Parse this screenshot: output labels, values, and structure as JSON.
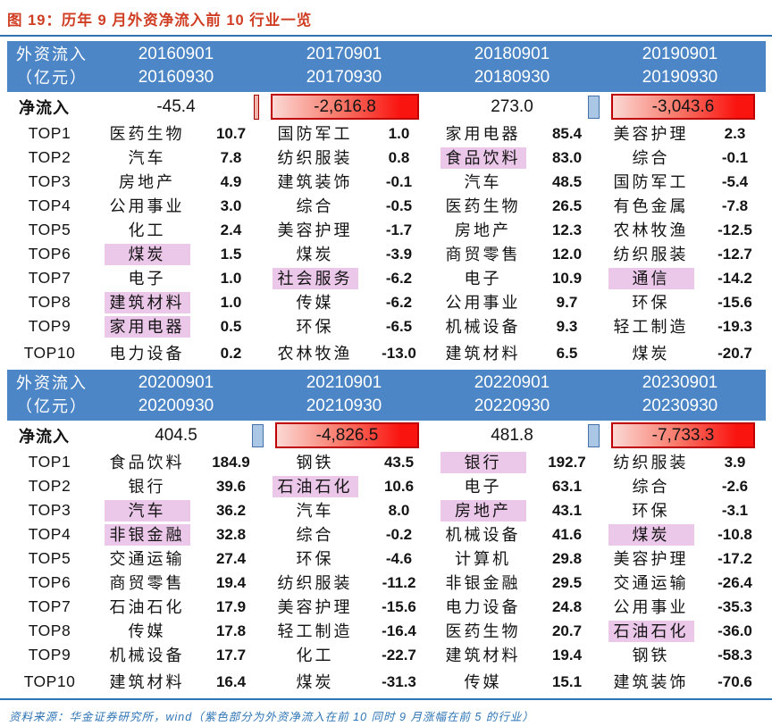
{
  "title": "图 19：历年 9 月外资净流入前 10 行业一览",
  "footer": "资料来源：华金证券研究所，wind（紫色部分为外资净流入在前 10 同时 9 月涨幅在前 5 的行业）",
  "header": {
    "col_label_line1": "外资流入",
    "col_label_line2": "（亿元）",
    "netflow_label": "净流入"
  },
  "colors": {
    "title_red": "#CF3E23",
    "line_blue": "#2E74B5",
    "header_blue": "#4C86C6",
    "highlight_purple": "#EBC7E9",
    "databar_red": "#FA1410",
    "databar_red_border": "#BE0000",
    "databar_blue": "#AAC7E6"
  },
  "tables": [
    {
      "periods": [
        {
          "start": "20160901",
          "end": "20160930"
        },
        {
          "start": "20170901",
          "end": "20170930"
        },
        {
          "start": "20180901",
          "end": "20180930"
        },
        {
          "start": "20190901",
          "end": "20190930"
        }
      ],
      "netflow": [
        {
          "value": "-45.4",
          "box": false,
          "sliver": null
        },
        {
          "value": "-2,616.8",
          "box": true,
          "sliver": "red"
        },
        {
          "value": "273.0",
          "box": false,
          "sliver": null
        },
        {
          "value": "-3,043.6",
          "box": true,
          "sliver": "blue"
        }
      ],
      "rows": [
        {
          "label": "TOP1",
          "cells": [
            [
              "医药生物",
              "10.7",
              false
            ],
            [
              "国防军工",
              "1.0",
              false
            ],
            [
              "家用电器",
              "85.4",
              false
            ],
            [
              "美容护理",
              "2.3",
              false
            ]
          ]
        },
        {
          "label": "TOP2",
          "cells": [
            [
              "汽车",
              "7.8",
              false
            ],
            [
              "纺织服装",
              "0.8",
              false
            ],
            [
              "食品饮料",
              "83.0",
              true
            ],
            [
              "综合",
              "-0.1",
              false
            ]
          ]
        },
        {
          "label": "TOP3",
          "cells": [
            [
              "房地产",
              "4.9",
              false
            ],
            [
              "建筑装饰",
              "-0.1",
              false
            ],
            [
              "汽车",
              "48.5",
              false
            ],
            [
              "国防军工",
              "-5.4",
              false
            ]
          ]
        },
        {
          "label": "TOP4",
          "cells": [
            [
              "公用事业",
              "3.0",
              false
            ],
            [
              "综合",
              "-0.5",
              false
            ],
            [
              "医药生物",
              "26.5",
              false
            ],
            [
              "有色金属",
              "-7.8",
              false
            ]
          ]
        },
        {
          "label": "TOP5",
          "cells": [
            [
              "化工",
              "2.4",
              false
            ],
            [
              "美容护理",
              "-1.7",
              false
            ],
            [
              "房地产",
              "12.3",
              false
            ],
            [
              "农林牧渔",
              "-12.5",
              false
            ]
          ]
        },
        {
          "label": "TOP6",
          "cells": [
            [
              "煤炭",
              "1.5",
              true
            ],
            [
              "煤炭",
              "-3.9",
              false
            ],
            [
              "商贸零售",
              "12.0",
              false
            ],
            [
              "纺织服装",
              "-12.7",
              false
            ]
          ]
        },
        {
          "label": "TOP7",
          "cells": [
            [
              "电子",
              "1.0",
              false
            ],
            [
              "社会服务",
              "-6.2",
              true
            ],
            [
              "电子",
              "10.9",
              false
            ],
            [
              "通信",
              "-14.2",
              true
            ]
          ]
        },
        {
          "label": "TOP8",
          "cells": [
            [
              "建筑材料",
              "1.0",
              true
            ],
            [
              "传媒",
              "-6.2",
              false
            ],
            [
              "公用事业",
              "9.7",
              false
            ],
            [
              "环保",
              "-15.6",
              false
            ]
          ]
        },
        {
          "label": "TOP9",
          "cells": [
            [
              "家用电器",
              "0.5",
              true
            ],
            [
              "环保",
              "-6.5",
              false
            ],
            [
              "机械设备",
              "9.3",
              false
            ],
            [
              "轻工制造",
              "-19.3",
              false
            ]
          ]
        },
        {
          "label": "TOP10",
          "cells": [
            [
              "电力设备",
              "0.2",
              false
            ],
            [
              "农林牧渔",
              "-13.0",
              false
            ],
            [
              "建筑材料",
              "6.5",
              false
            ],
            [
              "煤炭",
              "-20.7",
              false
            ]
          ]
        }
      ]
    },
    {
      "periods": [
        {
          "start": "20200901",
          "end": "20200930"
        },
        {
          "start": "20210901",
          "end": "20210930"
        },
        {
          "start": "20220901",
          "end": "20220930"
        },
        {
          "start": "20230901",
          "end": "20230930"
        }
      ],
      "netflow": [
        {
          "value": "404.5",
          "box": false,
          "sliver": null
        },
        {
          "value": "-4,826.5",
          "box": true,
          "sliver": "blue"
        },
        {
          "value": "481.8",
          "box": false,
          "sliver": null
        },
        {
          "value": "-7,733.3",
          "box": true,
          "sliver": "blue"
        }
      ],
      "rows": [
        {
          "label": "TOP1",
          "cells": [
            [
              "食品饮料",
              "184.9",
              false
            ],
            [
              "钢铁",
              "43.5",
              false
            ],
            [
              "银行",
              "192.7",
              true
            ],
            [
              "纺织服装",
              "3.9",
              false
            ]
          ]
        },
        {
          "label": "TOP2",
          "cells": [
            [
              "银行",
              "39.6",
              false
            ],
            [
              "石油石化",
              "10.6",
              true
            ],
            [
              "电子",
              "63.1",
              false
            ],
            [
              "综合",
              "-2.6",
              false
            ]
          ]
        },
        {
          "label": "TOP3",
          "cells": [
            [
              "汽车",
              "36.2",
              true
            ],
            [
              "汽车",
              "8.0",
              false
            ],
            [
              "房地产",
              "43.1",
              true
            ],
            [
              "环保",
              "-3.1",
              false
            ]
          ]
        },
        {
          "label": "TOP4",
          "cells": [
            [
              "非银金融",
              "32.8",
              true
            ],
            [
              "综合",
              "-0.2",
              false
            ],
            [
              "机械设备",
              "41.6",
              false
            ],
            [
              "煤炭",
              "-10.8",
              true
            ]
          ]
        },
        {
          "label": "TOP5",
          "cells": [
            [
              "交通运输",
              "27.4",
              false
            ],
            [
              "环保",
              "-4.6",
              false
            ],
            [
              "计算机",
              "29.8",
              false
            ],
            [
              "美容护理",
              "-17.2",
              false
            ]
          ]
        },
        {
          "label": "TOP6",
          "cells": [
            [
              "商贸零售",
              "19.4",
              false
            ],
            [
              "纺织服装",
              "-11.2",
              false
            ],
            [
              "非银金融",
              "29.5",
              false
            ],
            [
              "交通运输",
              "-26.4",
              false
            ]
          ]
        },
        {
          "label": "TOP7",
          "cells": [
            [
              "石油石化",
              "17.9",
              false
            ],
            [
              "美容护理",
              "-15.6",
              false
            ],
            [
              "电力设备",
              "24.8",
              false
            ],
            [
              "公用事业",
              "-35.3",
              false
            ]
          ]
        },
        {
          "label": "TOP8",
          "cells": [
            [
              "传媒",
              "17.8",
              false
            ],
            [
              "轻工制造",
              "-16.4",
              false
            ],
            [
              "医药生物",
              "20.7",
              false
            ],
            [
              "石油石化",
              "-36.0",
              true
            ]
          ]
        },
        {
          "label": "TOP9",
          "cells": [
            [
              "机械设备",
              "17.7",
              false
            ],
            [
              "化工",
              "-22.7",
              false
            ],
            [
              "建筑材料",
              "19.4",
              false
            ],
            [
              "钢铁",
              "-58.3",
              false
            ]
          ]
        },
        {
          "label": "TOP10",
          "cells": [
            [
              "建筑材料",
              "16.4",
              false
            ],
            [
              "煤炭",
              "-31.3",
              false
            ],
            [
              "传媒",
              "15.1",
              false
            ],
            [
              "建筑装饰",
              "-70.6",
              false
            ]
          ]
        }
      ]
    }
  ]
}
